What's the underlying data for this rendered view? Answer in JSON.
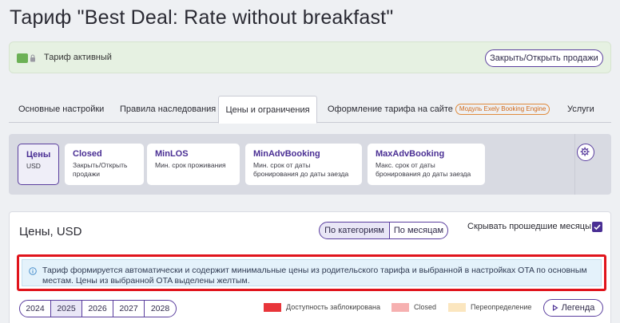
{
  "page": {
    "title": "Тариф \"Best Deal: Rate without breakfast\""
  },
  "status": {
    "text": "Тариф активный",
    "toggle_button": "Закрыть/Открыть продажи"
  },
  "tabs": [
    {
      "label": "Основные настройки"
    },
    {
      "label": "Правила наследования"
    },
    {
      "label": "Цены и ограничения"
    },
    {
      "label": "Оформление тарифа на сайте",
      "badge": "Модуль Exely Booking Engine"
    },
    {
      "label": "Услуги"
    }
  ],
  "cards": [
    {
      "title": "Цены",
      "subtitle": "USD"
    },
    {
      "title": "Closed",
      "subtitle": "Закрыть/Открыть продажи"
    },
    {
      "title": "MinLOS",
      "subtitle": "Мин. срок проживания"
    },
    {
      "title": "MinAdvBooking",
      "subtitle": "Мин. срок от даты бронирования до даты заезда"
    },
    {
      "title": "MaxAdvBooking",
      "subtitle": "Макс. срок от даты бронирования до даты заезда"
    }
  ],
  "prices": {
    "title": "Цены, USD",
    "view_by_category": "По категориям",
    "view_by_month": "По месяцам",
    "hide_past_label": "Скрывать прошедшие месяцы",
    "hide_past_checked": true,
    "alert": "Тариф формируется автоматически и содержит минимальные цены из родительского тарифа и выбранной в настройках OTA по основным местам. Цены из выбранной OTA выделены желтым.",
    "years": [
      "2024",
      "2025",
      "2026",
      "2027",
      "2028"
    ],
    "selected_year": "2025",
    "legend": [
      {
        "label": "Доступность заблокирована",
        "color": "#e8353a"
      },
      {
        "label": "Closed",
        "color": "#f6b0b0"
      },
      {
        "label": "Переопределение",
        "color": "#fbe6bf"
      }
    ],
    "legend_button": "Легенда"
  },
  "colors": {
    "accent": "#5a3e9e",
    "alert_border": "#e0141c",
    "alert_bg": "#e4f2fb",
    "active_green": "#6cb155"
  }
}
